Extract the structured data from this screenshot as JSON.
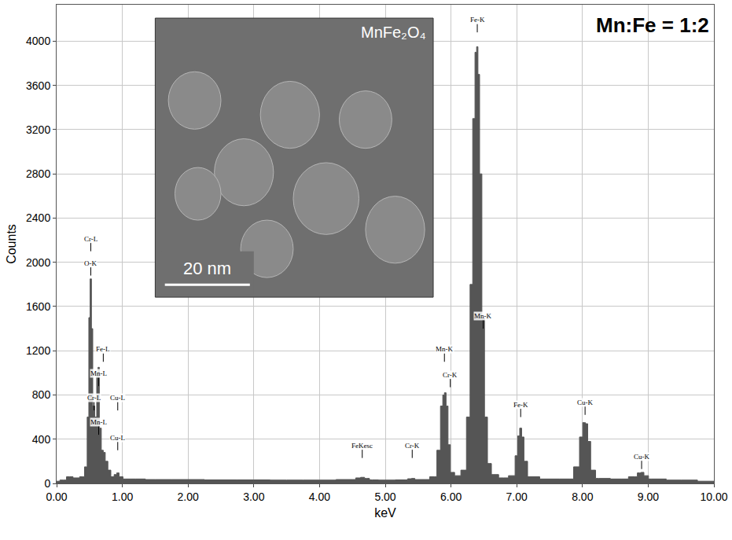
{
  "chart_data": {
    "type": "area",
    "annotation": "Mn:Fe = 1:2",
    "x_label": "keV",
    "y_label": "Counts",
    "color": "#555555",
    "grid": true,
    "x": [
      0.0,
      0.1,
      0.2,
      0.3,
      0.4,
      0.45,
      0.48,
      0.5,
      0.52,
      0.54,
      0.56,
      0.6,
      0.62,
      0.64,
      0.66,
      0.7,
      0.72,
      0.76,
      0.8,
      0.85,
      0.9,
      0.93,
      0.97,
      1.05,
      1.2,
      1.5,
      2.0,
      2.5,
      3.0,
      3.5,
      4.0,
      4.5,
      4.6,
      4.65,
      4.72,
      4.8,
      5.0,
      5.3,
      5.38,
      5.42,
      5.48,
      5.6,
      5.75,
      5.82,
      5.86,
      5.89,
      5.91,
      5.94,
      5.97,
      6.01,
      6.1,
      6.2,
      6.27,
      6.31,
      6.35,
      6.38,
      6.4,
      6.42,
      6.45,
      6.49,
      6.53,
      6.58,
      6.65,
      6.8,
      6.95,
      7.0,
      7.03,
      7.06,
      7.09,
      7.13,
      7.2,
      7.5,
      7.8,
      7.93,
      7.98,
      8.03,
      8.06,
      8.1,
      8.15,
      8.25,
      8.6,
      8.8,
      8.87,
      8.91,
      8.96,
      9.05,
      9.5,
      10.0
    ],
    "values": [
      20,
      30,
      60,
      50,
      60,
      150,
      600,
      1500,
      1850,
      1400,
      700,
      600,
      1000,
      1050,
      500,
      300,
      280,
      200,
      120,
      60,
      80,
      95,
      60,
      40,
      40,
      35,
      35,
      32,
      32,
      30,
      30,
      35,
      50,
      55,
      45,
      32,
      30,
      32,
      42,
      45,
      35,
      35,
      60,
      300,
      700,
      800,
      820,
      700,
      350,
      100,
      70,
      120,
      600,
      1800,
      3300,
      3900,
      3950,
      3700,
      2800,
      1500,
      600,
      180,
      80,
      50,
      70,
      250,
      430,
      500,
      420,
      200,
      60,
      40,
      40,
      150,
      420,
      550,
      540,
      380,
      120,
      45,
      40,
      60,
      95,
      100,
      70,
      40,
      30,
      20
    ],
    "xlim": [
      0,
      10
    ],
    "xticks": [
      {
        "value": 0,
        "label": "0.00"
      },
      {
        "value": 1,
        "label": "1.00"
      },
      {
        "value": 2,
        "label": "2.00"
      },
      {
        "value": 3,
        "label": "3.00"
      },
      {
        "value": 4,
        "label": "4.00"
      },
      {
        "value": 5,
        "label": "5.00"
      },
      {
        "value": 6,
        "label": "6.00"
      },
      {
        "value": 7,
        "label": "7.00"
      },
      {
        "value": 8,
        "label": "8.00"
      },
      {
        "value": 9,
        "label": "9.00"
      },
      {
        "value": 10,
        "label": "10.00"
      }
    ],
    "ylim": [
      0,
      4330
    ],
    "yticks": [
      0,
      400,
      800,
      1200,
      1600,
      2000,
      2400,
      2800,
      3200,
      3600,
      4000
    ],
    "peak_labels": [
      {
        "label": "Cr-L",
        "x": 0.52,
        "y": 2100
      },
      {
        "label": "O-K",
        "x": 0.52,
        "y": 1880
      },
      {
        "label": "Fe-L",
        "x": 0.71,
        "y": 1100
      },
      {
        "label": "Mn-L",
        "x": 0.64,
        "y": 880
      },
      {
        "label": "Cr-L",
        "x": 0.57,
        "y": 660
      },
      {
        "label": "Cu-L",
        "x": 0.93,
        "y": 660
      },
      {
        "label": "Mn-L",
        "x": 0.64,
        "y": 440
      },
      {
        "label": "Cu-L",
        "x": 0.93,
        "y": 300
      },
      {
        "label": "FeKesc",
        "x": 4.65,
        "y": 230
      },
      {
        "label": "Cr-K",
        "x": 5.41,
        "y": 230
      },
      {
        "label": "Mn-K",
        "x": 5.9,
        "y": 1100
      },
      {
        "label": "Cr-K",
        "x": 5.99,
        "y": 870
      },
      {
        "label": "Fe-K",
        "x": 6.4,
        "y": 4080
      },
      {
        "label": "Mn-K",
        "x": 6.49,
        "y": 1400
      },
      {
        "label": "Fe-K",
        "x": 7.06,
        "y": 600
      },
      {
        "label": "Cu-K",
        "x": 8.04,
        "y": 620
      },
      {
        "label": "Cu-K",
        "x": 8.9,
        "y": 130
      }
    ],
    "inset": {
      "title": "MnFe₂O₄",
      "scale_bar": "20 nm"
    }
  }
}
